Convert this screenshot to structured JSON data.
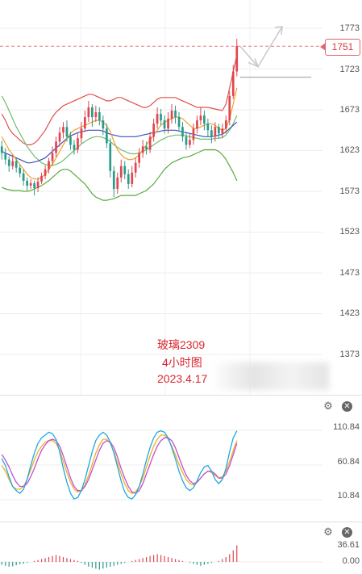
{
  "main_axis": {
    "labels": [
      "1773",
      "1723",
      "1673",
      "1623",
      "1573",
      "1523",
      "1473",
      "1423",
      "1373"
    ]
  },
  "current_price": "1751",
  "annotation": {
    "line1": "玻璃2309",
    "line2": "4小时图",
    "line3": "2023.4.17"
  },
  "osc_axis": {
    "labels": [
      "110.84",
      "60.84",
      "10.84"
    ]
  },
  "macd_axis": {
    "labels": [
      "36.61",
      "0.00"
    ]
  },
  "icons": {
    "settings": "gear-icon",
    "close": "close-icon"
  },
  "colors": {
    "up": "#e0464e",
    "down": "#2a9a8a",
    "boll_upper": "#e05050",
    "boll_lower": "#5aaa3a",
    "mid": "#3c4fc0",
    "ma_orange": "#f0a030",
    "ma_green": "#6cbf6c"
  },
  "chart_data": {
    "type": "candlestick",
    "timeframe": "4小时图",
    "yaxis_ticks": [
      1773,
      1723,
      1673,
      1623,
      1573,
      1523,
      1473,
      1423,
      1373
    ],
    "last_price": 1751,
    "candles": [
      [
        1628,
        1620,
        1635,
        1612
      ],
      [
        1620,
        1612,
        1626,
        1606
      ],
      [
        1612,
        1604,
        1616,
        1597
      ],
      [
        1604,
        1610,
        1618,
        1600
      ],
      [
        1610,
        1602,
        1614,
        1596
      ],
      [
        1602,
        1595,
        1606,
        1590
      ],
      [
        1595,
        1586,
        1600,
        1580
      ],
      [
        1586,
        1580,
        1590,
        1574
      ],
      [
        1580,
        1583,
        1588,
        1576
      ],
      [
        1583,
        1577,
        1586,
        1568
      ],
      [
        1577,
        1585,
        1590,
        1572
      ],
      [
        1585,
        1592,
        1596,
        1582
      ],
      [
        1592,
        1600,
        1605,
        1588
      ],
      [
        1600,
        1610,
        1614,
        1595
      ],
      [
        1610,
        1620,
        1628,
        1604
      ],
      [
        1620,
        1634,
        1640,
        1615
      ],
      [
        1634,
        1645,
        1652,
        1628
      ],
      [
        1645,
        1652,
        1658,
        1638
      ],
      [
        1652,
        1640,
        1660,
        1634
      ],
      [
        1640,
        1630,
        1646,
        1624
      ],
      [
        1630,
        1624,
        1636,
        1618
      ],
      [
        1624,
        1638,
        1644,
        1620
      ],
      [
        1638,
        1650,
        1658,
        1632
      ],
      [
        1650,
        1664,
        1672,
        1646
      ],
      [
        1664,
        1676,
        1684,
        1658
      ],
      [
        1676,
        1664,
        1680,
        1652
      ],
      [
        1664,
        1670,
        1678,
        1658
      ],
      [
        1670,
        1660,
        1676,
        1654
      ],
      [
        1660,
        1650,
        1666,
        1642
      ],
      [
        1650,
        1632,
        1656,
        1626
      ],
      [
        1632,
        1598,
        1638,
        1590
      ],
      [
        1598,
        1576,
        1604,
        1566
      ],
      [
        1576,
        1590,
        1596,
        1570
      ],
      [
        1590,
        1604,
        1612,
        1584
      ],
      [
        1604,
        1594,
        1610,
        1588
      ],
      [
        1594,
        1582,
        1600,
        1576
      ],
      [
        1582,
        1596,
        1604,
        1578
      ],
      [
        1596,
        1608,
        1614,
        1590
      ],
      [
        1608,
        1620,
        1626,
        1602
      ],
      [
        1620,
        1628,
        1636,
        1614
      ],
      [
        1628,
        1624,
        1634,
        1618
      ],
      [
        1624,
        1640,
        1646,
        1620
      ],
      [
        1640,
        1656,
        1662,
        1634
      ],
      [
        1656,
        1668,
        1676,
        1650
      ],
      [
        1668,
        1660,
        1674,
        1654
      ],
      [
        1660,
        1650,
        1666,
        1644
      ],
      [
        1650,
        1662,
        1670,
        1644
      ],
      [
        1662,
        1672,
        1680,
        1656
      ],
      [
        1672,
        1664,
        1678,
        1656
      ],
      [
        1664,
        1652,
        1670,
        1646
      ],
      [
        1652,
        1640,
        1658,
        1634
      ],
      [
        1640,
        1630,
        1646,
        1624
      ],
      [
        1630,
        1636,
        1644,
        1626
      ],
      [
        1636,
        1650,
        1656,
        1630
      ],
      [
        1650,
        1660,
        1666,
        1644
      ],
      [
        1660,
        1666,
        1676,
        1654
      ],
      [
        1666,
        1656,
        1672,
        1648
      ],
      [
        1656,
        1648,
        1662,
        1640
      ],
      [
        1648,
        1640,
        1654,
        1632
      ],
      [
        1640,
        1652,
        1658,
        1634
      ],
      [
        1652,
        1644,
        1656,
        1638
      ],
      [
        1644,
        1650,
        1656,
        1638
      ],
      [
        1650,
        1660,
        1666,
        1644
      ],
      [
        1660,
        1690,
        1696,
        1654
      ],
      [
        1690,
        1720,
        1728,
        1686
      ],
      [
        1720,
        1751,
        1760,
        1714
      ]
    ],
    "boll_upper": [
      1668,
      1660,
      1650,
      1644,
      1640,
      1636,
      1632,
      1630,
      1630,
      1632,
      1636,
      1642,
      1648,
      1656,
      1664,
      1670,
      1674,
      1678,
      1680,
      1682,
      1684,
      1686,
      1688,
      1690,
      1692,
      1692,
      1690,
      1688,
      1686,
      1684,
      1684,
      1686,
      1688,
      1688,
      1686,
      1684,
      1682,
      1680,
      1678,
      1676,
      1676,
      1678,
      1682,
      1686,
      1688,
      1688,
      1688,
      1688,
      1688,
      1686,
      1684,
      1682,
      1680,
      1678,
      1676,
      1676,
      1676,
      1676,
      1675,
      1674,
      1673,
      1672,
      1680,
      1700,
      1720,
      1740
    ],
    "boll_lower": [
      1578,
      1576,
      1575,
      1574,
      1574,
      1574,
      1573,
      1573,
      1574,
      1576,
      1578,
      1580,
      1583,
      1586,
      1590,
      1594,
      1598,
      1600,
      1600,
      1598,
      1594,
      1590,
      1586,
      1582,
      1576,
      1570,
      1566,
      1564,
      1562,
      1562,
      1563,
      1564,
      1566,
      1568,
      1568,
      1568,
      1568,
      1568,
      1570,
      1572,
      1574,
      1578,
      1582,
      1588,
      1594,
      1600,
      1604,
      1608,
      1610,
      1612,
      1614,
      1615,
      1616,
      1618,
      1620,
      1622,
      1624,
      1624,
      1624,
      1624,
      1622,
      1618,
      1612,
      1604,
      1596,
      1586
    ],
    "mid": [
      1622,
      1620,
      1618,
      1616,
      1614,
      1612,
      1610,
      1608,
      1608,
      1609,
      1610,
      1612,
      1614,
      1618,
      1622,
      1626,
      1630,
      1634,
      1638,
      1641,
      1643,
      1645,
      1646,
      1647,
      1648,
      1648,
      1648,
      1648,
      1647,
      1645,
      1643,
      1642,
      1641,
      1640,
      1640,
      1640,
      1640,
      1640,
      1641,
      1642,
      1643,
      1644,
      1645,
      1646,
      1647,
      1648,
      1648,
      1648,
      1648,
      1647,
      1646,
      1645,
      1644,
      1643,
      1642,
      1641,
      1640,
      1640,
      1640,
      1641,
      1642,
      1643,
      1646,
      1650,
      1654,
      1658
    ],
    "ma_orange": [
      1640,
      1632,
      1624,
      1618,
      1612,
      1606,
      1600,
      1594,
      1590,
      1588,
      1588,
      1590,
      1594,
      1600,
      1606,
      1614,
      1622,
      1630,
      1638,
      1644,
      1648,
      1650,
      1652,
      1654,
      1656,
      1658,
      1660,
      1660,
      1658,
      1654,
      1646,
      1634,
      1624,
      1618,
      1614,
      1612,
      1612,
      1614,
      1618,
      1624,
      1630,
      1636,
      1642,
      1648,
      1654,
      1658,
      1660,
      1662,
      1664,
      1664,
      1662,
      1658,
      1654,
      1650,
      1650,
      1652,
      1654,
      1656,
      1656,
      1654,
      1650,
      1648,
      1650,
      1662,
      1680,
      1700
    ],
    "ma_green": [
      1690,
      1682,
      1672,
      1662,
      1652,
      1644,
      1636,
      1628,
      1622,
      1616,
      1612,
      1608,
      1606,
      1605,
      1605,
      1606,
      1608,
      1611,
      1615,
      1619,
      1623,
      1627,
      1631,
      1634,
      1637,
      1639,
      1640,
      1640,
      1639,
      1637,
      1634,
      1630,
      1627,
      1624,
      1622,
      1620,
      1619,
      1619,
      1620,
      1622,
      1624,
      1627,
      1630,
      1633,
      1636,
      1638,
      1640,
      1641,
      1642,
      1642,
      1642,
      1641,
      1640,
      1639,
      1638,
      1637,
      1637,
      1637,
      1637,
      1638,
      1638,
      1639,
      1642,
      1648,
      1656,
      1666
    ],
    "oscillator": {
      "range": [
        10.84,
        110.84
      ],
      "k": [
        70,
        60,
        44,
        30,
        24,
        20,
        26,
        40,
        60,
        78,
        92,
        100,
        104,
        108,
        106,
        98,
        80,
        56,
        36,
        20,
        12,
        14,
        24,
        40,
        60,
        80,
        96,
        104,
        108,
        104,
        94,
        78,
        58,
        38,
        22,
        14,
        12,
        18,
        30,
        48,
        68,
        86,
        100,
        108,
        110,
        108,
        100,
        86,
        70,
        52,
        38,
        28,
        24,
        28,
        38,
        50,
        58,
        60,
        52,
        40,
        34,
        40,
        56,
        80,
        100,
        110
      ],
      "d": [
        76,
        68,
        58,
        46,
        36,
        30,
        30,
        34,
        44,
        56,
        70,
        82,
        90,
        96,
        98,
        96,
        88,
        74,
        58,
        42,
        30,
        24,
        24,
        30,
        40,
        54,
        68,
        82,
        92,
        96,
        94,
        86,
        72,
        56,
        42,
        30,
        22,
        20,
        24,
        34,
        48,
        62,
        76,
        88,
        96,
        100,
        100,
        96,
        86,
        72,
        58,
        46,
        38,
        34,
        36,
        42,
        48,
        52,
        52,
        48,
        42,
        42,
        48,
        60,
        76,
        92
      ],
      "j": [
        60,
        52,
        40,
        30,
        26,
        26,
        30,
        40,
        54,
        68,
        80,
        88,
        94,
        96,
        96,
        92,
        82,
        66,
        50,
        36,
        26,
        22,
        24,
        32,
        46,
        62,
        78,
        90,
        98,
        98,
        92,
        80,
        64,
        48,
        34,
        24,
        20,
        22,
        30,
        42,
        58,
        74,
        88,
        98,
        104,
        104,
        98,
        88,
        76,
        62,
        50,
        40,
        34,
        32,
        36,
        42,
        48,
        52,
        50,
        46,
        42,
        44,
        52,
        66,
        82,
        96
      ]
    },
    "macd": {
      "range": [
        0,
        36.61
      ],
      "hist": [
        -6,
        -8,
        -10,
        -9,
        -7,
        -5,
        -4,
        -2,
        0,
        2,
        4,
        6,
        8,
        10,
        12,
        14,
        12,
        10,
        8,
        6,
        4,
        2,
        -2,
        -6,
        -10,
        -12,
        -14,
        -16,
        -14,
        -12,
        -10,
        -8,
        -6,
        -4,
        -2,
        0,
        2,
        4,
        6,
        8,
        10,
        12,
        14,
        16,
        14,
        12,
        10,
        8,
        6,
        4,
        2,
        0,
        -2,
        -4,
        -6,
        -8,
        -6,
        -4,
        -2,
        0,
        2,
        6,
        10,
        16,
        24,
        34
      ]
    }
  }
}
